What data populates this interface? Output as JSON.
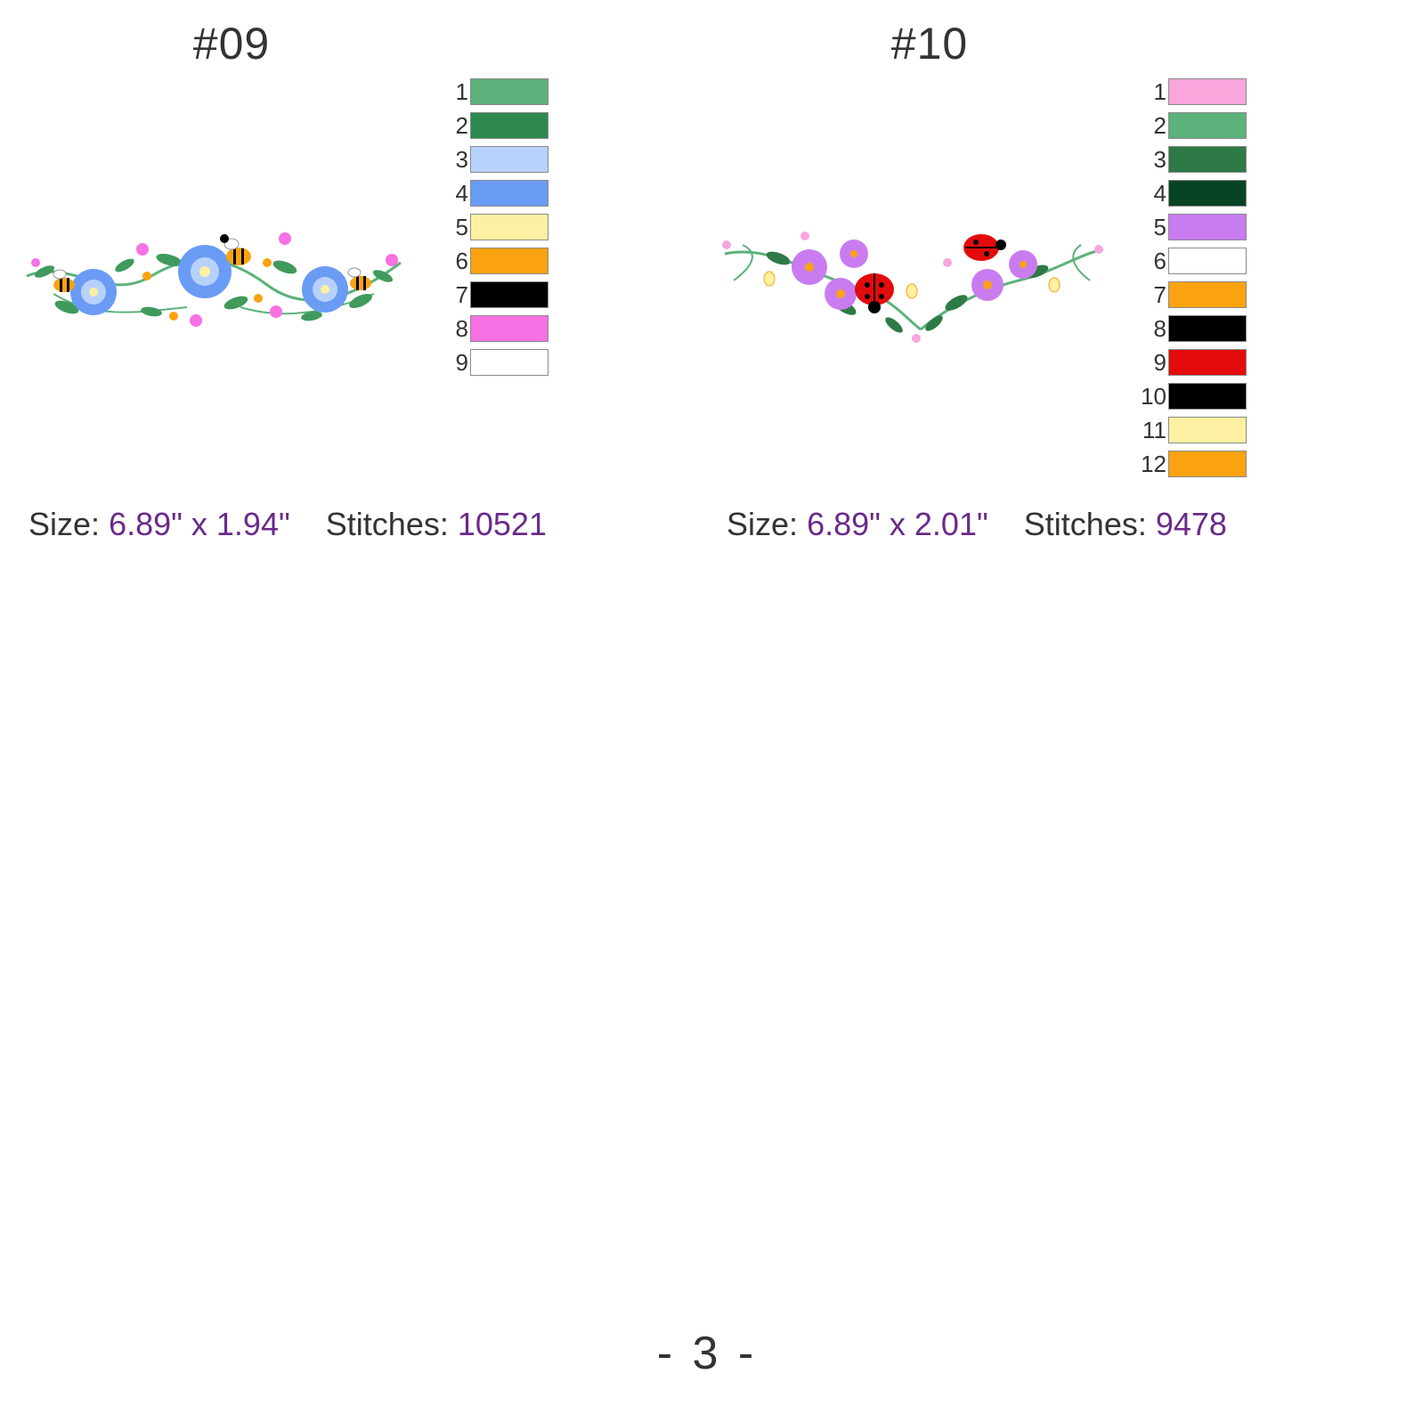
{
  "designs": [
    {
      "id": "#09",
      "colors": [
        {
          "number": "1",
          "color": "#5cb27a"
        },
        {
          "number": "2",
          "color": "#2e8a4e"
        },
        {
          "number": "3",
          "color": "#b7d1fb"
        },
        {
          "number": "4",
          "color": "#6a9cf5"
        },
        {
          "number": "5",
          "color": "#fdf0a2"
        },
        {
          "number": "6",
          "color": "#fba210"
        },
        {
          "number": "7",
          "color": "#000000"
        },
        {
          "number": "8",
          "color": "#f771e4"
        },
        {
          "number": "9",
          "color": "#ffffff"
        }
      ],
      "size_label": "Size:",
      "size_value": "6.89\" x 1.94\"",
      "stitches_label": "Stitches:",
      "stitches_value": "10521"
    },
    {
      "id": "#10",
      "colors": [
        {
          "number": "1",
          "color": "#f8a6dc"
        },
        {
          "number": "2",
          "color": "#5cb27a"
        },
        {
          "number": "3",
          "color": "#2e7a46"
        },
        {
          "number": "4",
          "color": "#074425"
        },
        {
          "number": "5",
          "color": "#c97cf0"
        },
        {
          "number": "6",
          "color": "#ffffff"
        },
        {
          "number": "7",
          "color": "#fba210"
        },
        {
          "number": "8",
          "color": "#000000"
        },
        {
          "number": "9",
          "color": "#e30b0b"
        },
        {
          "number": "10",
          "color": "#000000"
        },
        {
          "number": "11",
          "color": "#fdf0a2"
        },
        {
          "number": "12",
          "color": "#fba210"
        }
      ],
      "size_label": "Size:",
      "size_value": "6.89\" x 2.01\"",
      "stitches_label": "Stitches:",
      "stitches_value": "9478"
    }
  ],
  "page_number": "- 3 -"
}
